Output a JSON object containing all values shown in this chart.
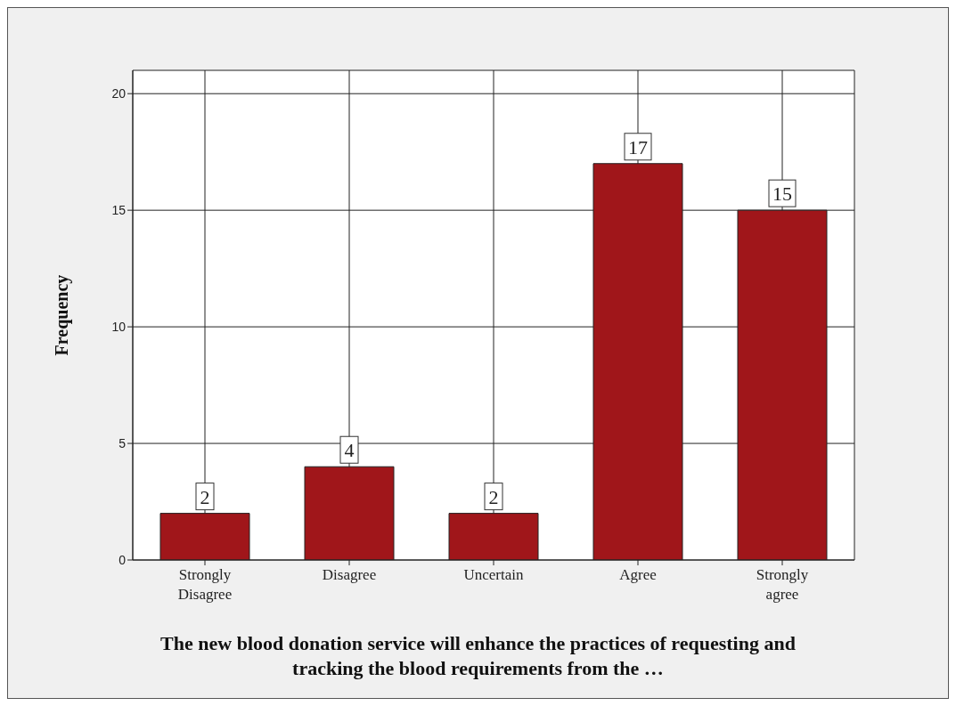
{
  "chart_data": {
    "type": "bar",
    "ylabel": "Frequency",
    "xlabel": "The new blood donation service will enhance the practices of requesting and tracking the blood requirements from the …",
    "categories": [
      "Strongly Disagree",
      "Disagree",
      "Uncertain",
      "Agree",
      "Strongly agree"
    ],
    "values": [
      2,
      4,
      2,
      17,
      15
    ],
    "color": "#a0161a",
    "ylim": [
      0,
      21
    ],
    "yticks": [
      0,
      5,
      10,
      15,
      20
    ],
    "grid": true,
    "data_labels": true
  }
}
